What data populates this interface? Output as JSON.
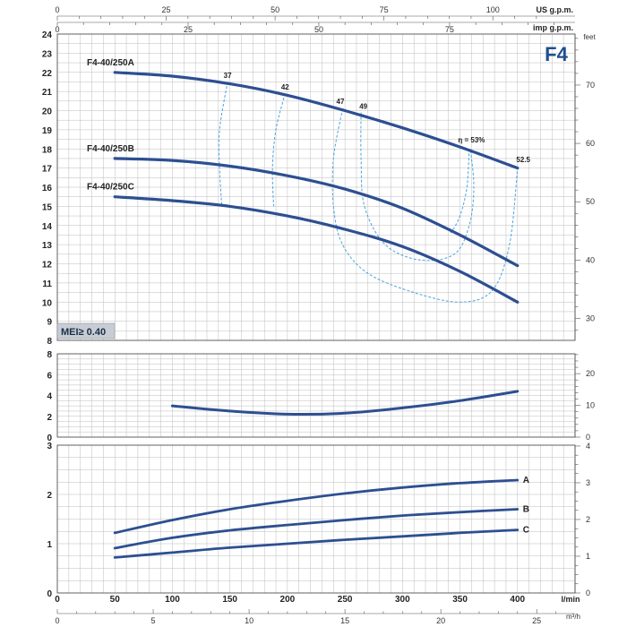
{
  "model": "F4",
  "badge": "MEI≥ 0.40",
  "colors": {
    "curve": "#2d4f91",
    "efficiency": "#4aa3df",
    "grid": "#bcbcbc",
    "frame": "#555555",
    "badge_bg": "#c8cdd4"
  },
  "units": {
    "us_gpm": "US g.p.m.",
    "imp_gpm": "imp g.p.m.",
    "feet": "feet",
    "lmin": "l/min",
    "m3h": "m³/h"
  },
  "ticks": {
    "lmin": [
      "0",
      "50",
      "100",
      "150",
      "200",
      "250",
      "300",
      "350",
      "400"
    ],
    "m3h": [
      "0",
      "5",
      "10",
      "15",
      "20",
      "25"
    ],
    "us_gpm": [
      "0",
      "25",
      "50",
      "75",
      "100"
    ],
    "imp_gpm": [
      "0",
      "25",
      "50",
      "75"
    ],
    "head_m": [
      "8",
      "9",
      "10",
      "11",
      "12",
      "13",
      "14",
      "15",
      "16",
      "17",
      "18",
      "19",
      "20",
      "21",
      "22",
      "23",
      "24"
    ],
    "head_ft": [
      "30",
      "40",
      "50",
      "60",
      "70"
    ],
    "npsh_m": [
      "0",
      "2",
      "4",
      "6",
      "8"
    ],
    "npsh_ft": [
      "0",
      "10",
      "20"
    ],
    "power_left": [
      "0",
      "1",
      "2",
      "3"
    ],
    "power_right": [
      "0",
      "1",
      "2",
      "3",
      "4"
    ]
  },
  "chart_data": [
    {
      "type": "line",
      "panel": "head",
      "xlabel": "l/min",
      "xlim": [
        0,
        450
      ],
      "ylim": [
        8,
        24
      ],
      "grid": true,
      "series": [
        {
          "name": "F4-40/250A",
          "x": [
            50,
            100,
            150,
            200,
            250,
            300,
            350,
            400
          ],
          "values": [
            22.0,
            21.8,
            21.4,
            20.8,
            20.0,
            19.1,
            18.1,
            17.0
          ]
        },
        {
          "name": "F4-40/250B",
          "x": [
            50,
            100,
            150,
            200,
            250,
            300,
            350,
            400
          ],
          "values": [
            17.5,
            17.4,
            17.1,
            16.6,
            15.9,
            14.9,
            13.5,
            11.9
          ]
        },
        {
          "name": "F4-40/250C",
          "x": [
            50,
            100,
            150,
            200,
            250,
            300,
            350,
            400
          ],
          "values": [
            15.5,
            15.3,
            15.0,
            14.5,
            13.8,
            12.9,
            11.6,
            10.0
          ]
        }
      ],
      "efficiency_contours": [
        {
          "label": "37",
          "points": [
            [
              148,
              21.5
            ],
            [
              141,
              19.0
            ],
            [
              141,
              17.0
            ],
            [
              143,
              15.0
            ]
          ]
        },
        {
          "label": "42",
          "points": [
            [
              198,
              20.9
            ],
            [
              190,
              19.0
            ],
            [
              187,
              17.0
            ],
            [
              188,
              15.0
            ]
          ]
        },
        {
          "label": "47",
          "points": [
            [
              248,
              20.1
            ],
            [
              240,
              17.5
            ],
            [
              240,
              15.0
            ],
            [
              248,
              13.0
            ],
            [
              270,
              11.5
            ],
            [
              310,
              10.5
            ],
            [
              350,
              10.0
            ],
            [
              378,
              10.6
            ],
            [
              393,
              13.0
            ],
            [
              400,
              17.0
            ]
          ]
        },
        {
          "label": "49",
          "points": [
            [
              264,
              19.9
            ],
            [
              264,
              17.5
            ],
            [
              267,
              15.0
            ],
            [
              285,
              13.0
            ],
            [
              315,
              12.2
            ],
            [
              345,
              12.5
            ],
            [
              358,
              14.0
            ],
            [
              362,
              16.0
            ],
            [
              359,
              18.0
            ]
          ]
        },
        {
          "label": "η = 53%",
          "points": [
            [
              358,
              18.0
            ],
            [
              356,
              16.0
            ],
            [
              350,
              14.5
            ],
            [
              342,
              13.6
            ]
          ]
        },
        {
          "label": "52.5",
          "points": []
        }
      ]
    },
    {
      "type": "line",
      "panel": "npsh",
      "xlabel": "l/min",
      "xlim": [
        0,
        450
      ],
      "ylim": [
        0,
        8
      ],
      "grid": true,
      "series": [
        {
          "name": "",
          "x": [
            100,
            150,
            200,
            250,
            300,
            350,
            400
          ],
          "values": [
            3.0,
            2.5,
            2.2,
            2.3,
            2.8,
            3.5,
            4.4
          ]
        }
      ]
    },
    {
      "type": "line",
      "panel": "power",
      "xlabel": "l/min",
      "xlim": [
        0,
        450
      ],
      "ylim": [
        0,
        3
      ],
      "grid": true,
      "series": [
        {
          "name": "A",
          "x": [
            50,
            100,
            150,
            200,
            250,
            300,
            350,
            400
          ],
          "values": [
            1.22,
            1.48,
            1.7,
            1.87,
            2.02,
            2.14,
            2.23,
            2.29
          ]
        },
        {
          "name": "B",
          "x": [
            50,
            100,
            150,
            200,
            250,
            300,
            350,
            400
          ],
          "values": [
            0.91,
            1.12,
            1.27,
            1.38,
            1.48,
            1.57,
            1.64,
            1.7
          ]
        },
        {
          "name": "C",
          "x": [
            50,
            100,
            150,
            200,
            250,
            300,
            350,
            400
          ],
          "values": [
            0.72,
            0.82,
            0.92,
            1.0,
            1.08,
            1.15,
            1.22,
            1.28
          ]
        }
      ]
    }
  ]
}
